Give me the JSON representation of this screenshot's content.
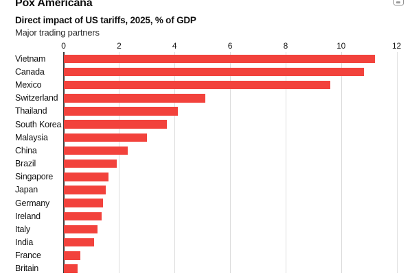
{
  "header": {
    "title": "Pox Americana",
    "subtitle": "Direct impact of US tariffs, 2025, % of GDP",
    "note": "Major trading partners"
  },
  "toolbar": {
    "action_icon": "chart-action-icon"
  },
  "colors": {
    "bar": "#F2423C",
    "gridline": "#DCDCDC",
    "zero_axis": "#3C3C3C",
    "text": "#121212",
    "note_text": "#2E2E2E",
    "icon_border": "#8F8F8F",
    "background": "#FFFFFF"
  },
  "chart_data": {
    "type": "bar",
    "orientation": "horizontal",
    "title": "Pox Americana",
    "subtitle": "Direct impact of US tariffs, 2025, % of GDP",
    "note": "Major trading partners",
    "categories": [
      "Vietnam",
      "Canada",
      "Mexico",
      "Switzerland",
      "Thailand",
      "South Korea",
      "Malaysia",
      "China",
      "Brazil",
      "Singapore",
      "Japan",
      "Germany",
      "Ireland",
      "Italy",
      "India",
      "France",
      "Britain"
    ],
    "values": [
      11.2,
      10.8,
      9.6,
      5.1,
      4.1,
      3.7,
      3.0,
      2.3,
      1.9,
      1.6,
      1.5,
      1.4,
      1.35,
      1.2,
      1.1,
      0.6,
      0.5
    ],
    "xlabel": "",
    "ylabel": "",
    "xlim": [
      0,
      12
    ],
    "xticks": [
      0,
      2,
      4,
      6,
      8,
      10,
      12
    ],
    "axis_position": "top",
    "grid": true,
    "legend": false,
    "bar_color": "#F2423C"
  }
}
